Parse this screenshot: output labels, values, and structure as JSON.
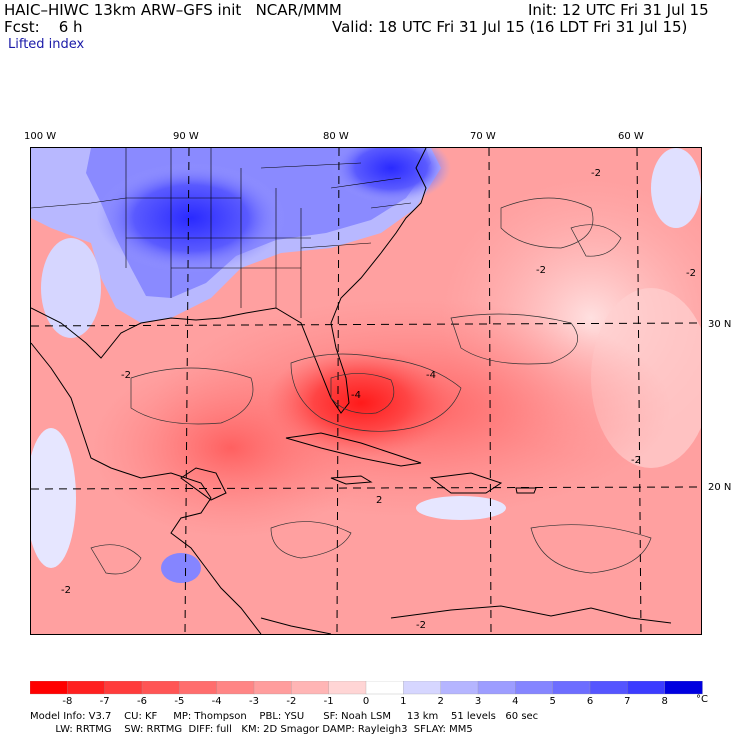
{
  "header": {
    "model_line": "HAIC–HIWC 13km ARW–GFS init   NCAR/MMM",
    "fcst_line": "Fcst:    6 h",
    "init_line": "Init: 12 UTC Fri 31 Jul 15",
    "valid_line": "Valid: 18 UTC Fri 31 Jul 15 (16 LDT Fri 31 Jul 15)",
    "field_label": "Lifted index"
  },
  "map": {
    "longitude_labels": [
      "100 W",
      "90 W",
      "80 W",
      "70 W",
      "60 W"
    ],
    "latitude_labels": [
      "30 N",
      "20 N"
    ],
    "contour_labels": [
      "-2",
      "-2",
      "-2",
      "-2",
      "-2",
      "-2",
      "-2",
      "-4",
      "-4",
      "2"
    ]
  },
  "colorbar": {
    "levels": [
      "-8",
      "-7",
      "-6",
      "-5",
      "-4",
      "-3",
      "-2",
      "-1",
      "0",
      "1",
      "2",
      "3",
      "4",
      "5",
      "6",
      "7",
      "8"
    ],
    "unit": "°C",
    "colors": [
      "#ff0000",
      "#ff2020",
      "#ff3c3c",
      "#ff5555",
      "#ff6d6d",
      "#ff8585",
      "#ff9d9d",
      "#ffb5b5",
      "#ffd5d5",
      "#ffffff",
      "#d6d6ff",
      "#b5b5ff",
      "#9d9dff",
      "#8585ff",
      "#6d6dff",
      "#5555ff",
      "#3c3cff",
      "#0000e0"
    ]
  },
  "footer": {
    "line1": "Model Info: V3.7    CU: KF     MP: Thompson    PBL: YSU      SF: Noah LSM     13 km    51 levels   60 sec",
    "line2": "        LW: RRTMG    SW: RRTMG  DIFF: full   KM: 2D Smagor DAMP: Rayleigh3  SFLAY: MM5"
  }
}
